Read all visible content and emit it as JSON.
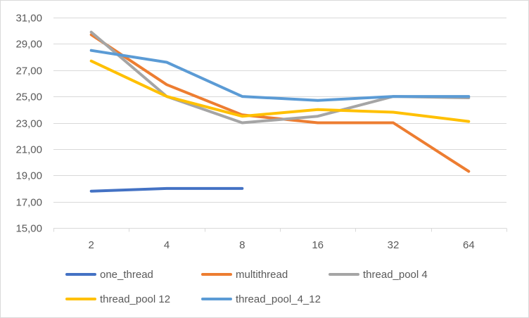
{
  "chart_data": {
    "type": "line",
    "title": "",
    "xlabel": "",
    "ylabel": "",
    "categories": [
      "2",
      "4",
      "8",
      "16",
      "32",
      "64"
    ],
    "ylim": [
      15,
      31
    ],
    "yticks": [
      15,
      17,
      19,
      21,
      23,
      25,
      27,
      29,
      31
    ],
    "ytick_labels": [
      "15,00",
      "17,00",
      "19,00",
      "21,00",
      "23,00",
      "25,00",
      "27,00",
      "29,00",
      "31,00"
    ],
    "grid": true,
    "legend_position": "bottom",
    "series": [
      {
        "name": "one_thread",
        "color": "#4472c4",
        "values": [
          17.8,
          18.0,
          18.0,
          null,
          null,
          null
        ]
      },
      {
        "name": "multithread",
        "color": "#ed7d31",
        "values": [
          29.7,
          25.9,
          23.6,
          23.0,
          23.0,
          19.3
        ]
      },
      {
        "name": "thread_pool 4",
        "color": "#a5a5a5",
        "values": [
          29.9,
          25.0,
          23.0,
          23.5,
          25.0,
          24.9
        ]
      },
      {
        "name": "thread_pool 12",
        "color": "#ffc000",
        "values": [
          27.7,
          25.0,
          23.5,
          24.0,
          23.8,
          23.1
        ]
      },
      {
        "name": "thread_pool_4_12",
        "color": "#5b9bd5",
        "values": [
          28.5,
          27.6,
          25.0,
          24.7,
          25.0,
          25.0
        ]
      }
    ]
  }
}
